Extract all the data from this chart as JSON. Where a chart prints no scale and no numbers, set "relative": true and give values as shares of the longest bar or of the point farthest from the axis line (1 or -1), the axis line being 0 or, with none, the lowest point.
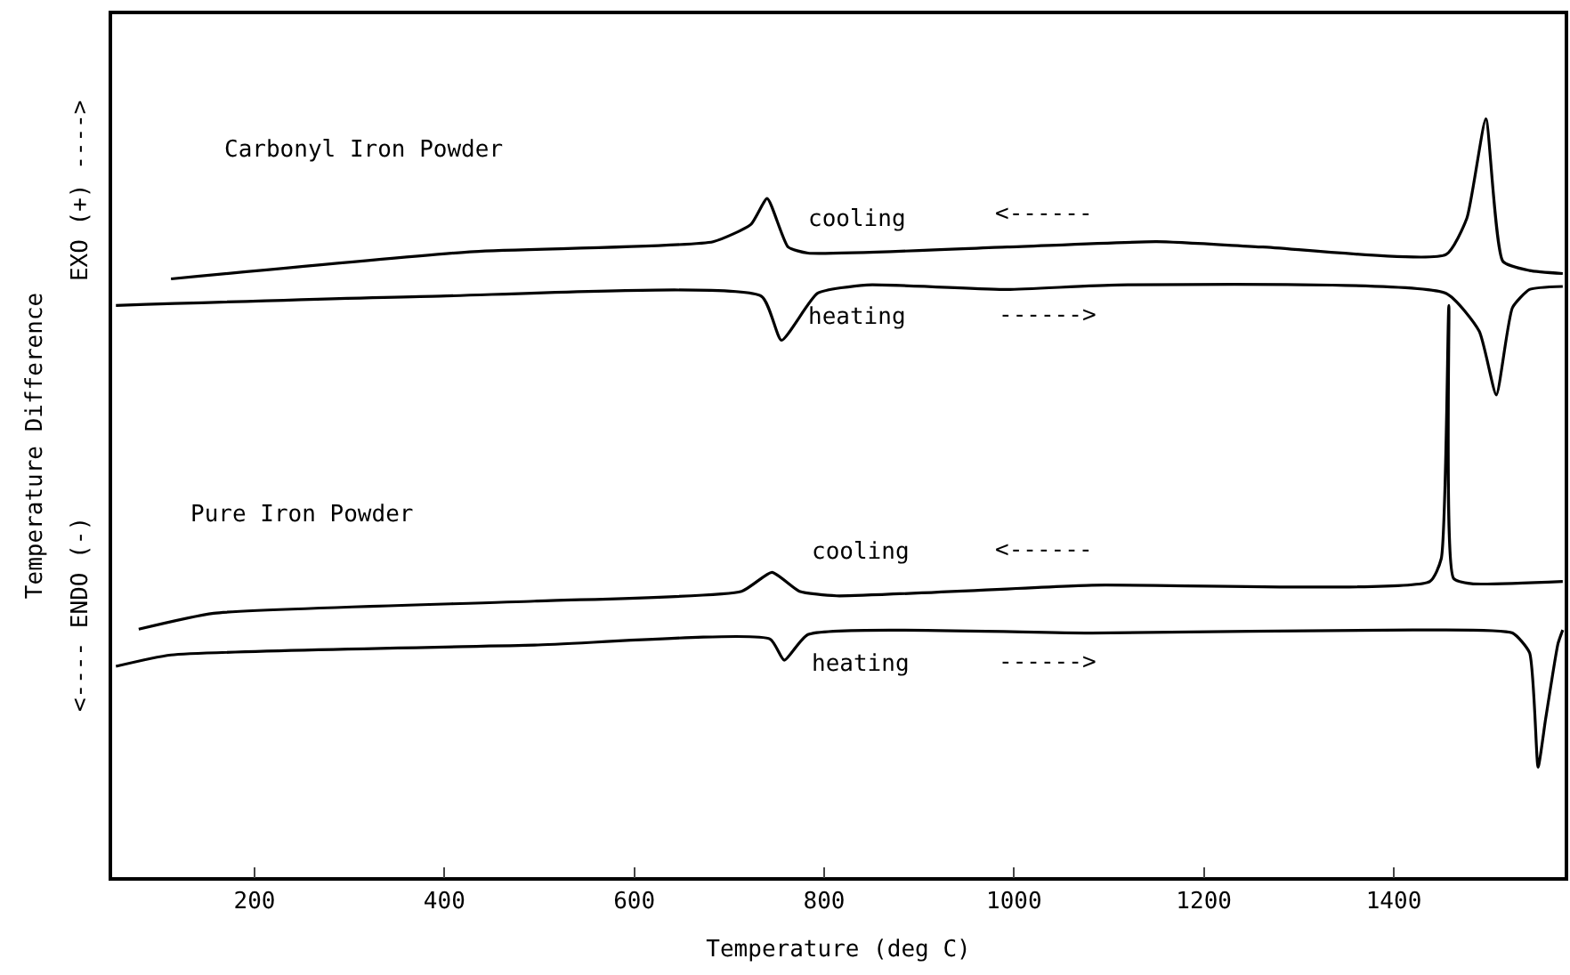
{
  "chart_data": {
    "type": "line",
    "relative": true,
    "xlabel": "Temperature (deg C)",
    "ylabel": "Temperature Difference",
    "xlim": [
      50,
      1580
    ],
    "xticks": [
      200,
      400,
      600,
      800,
      1000,
      1200,
      1400
    ],
    "marker": "none",
    "line_style": "solid",
    "series": [
      {
        "color": "#000000",
        "x": [
          112,
          431,
          683,
          723,
          740,
          762,
          783,
          993,
          1150,
          1262,
          1455,
          1477,
          1497,
          1515,
          1543,
          1578
        ],
        "values": [
          0.789,
          0.825,
          0.838,
          0.861,
          0.895,
          0.831,
          0.823,
          0.831,
          0.838,
          0.831,
          0.821,
          0.869,
          1.0,
          0.812,
          0.8,
          0.796
        ]
      },
      {
        "color": "#000000",
        "x": [
          54,
          387,
          734,
          755,
          793,
          845,
          993,
          1109,
          1455,
          1490,
          1508,
          1525,
          1543,
          1578
        ],
        "values": [
          0.754,
          0.766,
          0.766,
          0.708,
          0.77,
          0.781,
          0.775,
          0.781,
          0.77,
          0.72,
          0.636,
          0.751,
          0.775,
          0.779
        ]
      },
      {
        "color": "#000000",
        "x": [
          78,
          157,
          495,
          713,
          745,
          774,
          813,
          1082,
          1438,
          1450,
          1458,
          1463,
          1482,
          1578
        ],
        "values": [
          0.327,
          0.348,
          0.364,
          0.377,
          0.402,
          0.377,
          0.371,
          0.385,
          0.39,
          0.42,
          0.754,
          0.394,
          0.387,
          0.39
        ]
      },
      {
        "color": "#000000",
        "x": [
          54,
          112,
          495,
          743,
          758,
          783,
          1082,
          1420,
          1525,
          1543,
          1552,
          1560,
          1573,
          1578
        ],
        "values": [
          0.278,
          0.293,
          0.306,
          0.314,
          0.286,
          0.32,
          0.322,
          0.326,
          0.322,
          0.296,
          0.145,
          0.209,
          0.308,
          0.326
        ]
      }
    ],
    "annotations": [
      "Carbonyl Iron Powder",
      "cooling",
      "<------",
      "heating",
      "------>",
      "Pure Iron Powder",
      "cooling",
      "<------",
      "heating",
      "------>",
      "<---- ENDO (-)",
      "EXO (+) ---->"
    ]
  }
}
